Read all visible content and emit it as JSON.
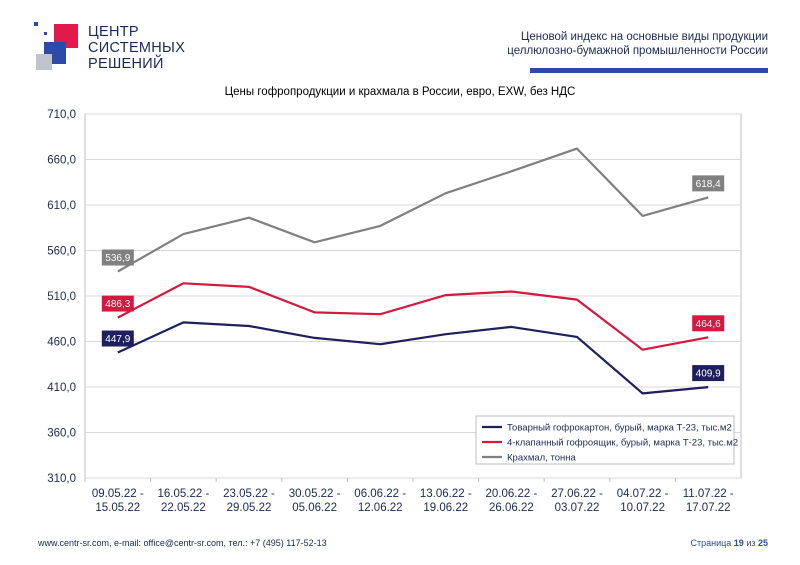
{
  "header": {
    "logo_lines": "ЦЕНТР\nСИСТЕМНЫХ\nРЕШЕНИЙ",
    "report_title_line1": "Ценовой индекс на основные виды продукции",
    "report_title_line2": "целлюлозно-бумажной промышленности России"
  },
  "footer": {
    "contacts": "www.centr-sr.com, e-mail: office@centr-sr.com, тел.: +7 (495) 117-52-13",
    "page_word": "Страница",
    "page_current": "19",
    "page_of": "из",
    "page_total": "25"
  },
  "colors": {
    "brand_blue": "#2d4aa8",
    "brand_red": "#e21a4b",
    "series_navy": "#1f1f5e",
    "series_crimson": "#d6173e",
    "series_gray": "#808080"
  },
  "chart_data": {
    "type": "line",
    "title": "Цены гофропродукции и крахмала в России, евро, EXW, без НДС",
    "xlabel": "",
    "ylabel": "",
    "ylim": [
      310,
      710
    ],
    "yticks": [
      "310,0",
      "360,0",
      "410,0",
      "460,0",
      "510,0",
      "560,0",
      "610,0",
      "660,0",
      "710,0"
    ],
    "ytick_values": [
      310,
      360,
      410,
      460,
      510,
      560,
      610,
      660,
      710
    ],
    "categories": [
      [
        "09.05.22 -",
        "15.05.22"
      ],
      [
        "16.05.22 -",
        "22.05.22"
      ],
      [
        "23.05.22 -",
        "29.05.22"
      ],
      [
        "30.05.22 -",
        "05.06.22"
      ],
      [
        "06.06.22 -",
        "12.06.22"
      ],
      [
        "13.06.22 -",
        "19.06.22"
      ],
      [
        "20.06.22 -",
        "26.06.22"
      ],
      [
        "27.06.22 -",
        "03.07.22"
      ],
      [
        "04.07.22 -",
        "10.07.22"
      ],
      [
        "11.07.22 -",
        "17.07.22"
      ]
    ],
    "grid": true,
    "legend_position": "bottom-right",
    "series": [
      {
        "name": "Товарный гофрокартон, бурый, марка Т-23, тыс.м2",
        "color": "#1f1f5e",
        "values": [
          447.9,
          481,
          477,
          464,
          457,
          468,
          476,
          465,
          403,
          409.9
        ],
        "labels": [
          {
            "index": 0,
            "text": "447,9"
          },
          {
            "index": 9,
            "text": "409,9"
          }
        ]
      },
      {
        "name": "4-клапанный гофроящик, бурый, марка Т-23, тыс.м2",
        "color": "#d6173e",
        "values": [
          486.3,
          524,
          520,
          492,
          490,
          511,
          515,
          506,
          451,
          464.6
        ],
        "labels": [
          {
            "index": 0,
            "text": "486,3"
          },
          {
            "index": 9,
            "text": "464,6"
          }
        ]
      },
      {
        "name": "Крахмал, тонна",
        "color": "#808080",
        "values": [
          536.9,
          578,
          596,
          569,
          587,
          623,
          647,
          672,
          598,
          618.4
        ],
        "labels": [
          {
            "index": 0,
            "text": "536,9"
          },
          {
            "index": 9,
            "text": "618,4"
          }
        ]
      }
    ]
  }
}
